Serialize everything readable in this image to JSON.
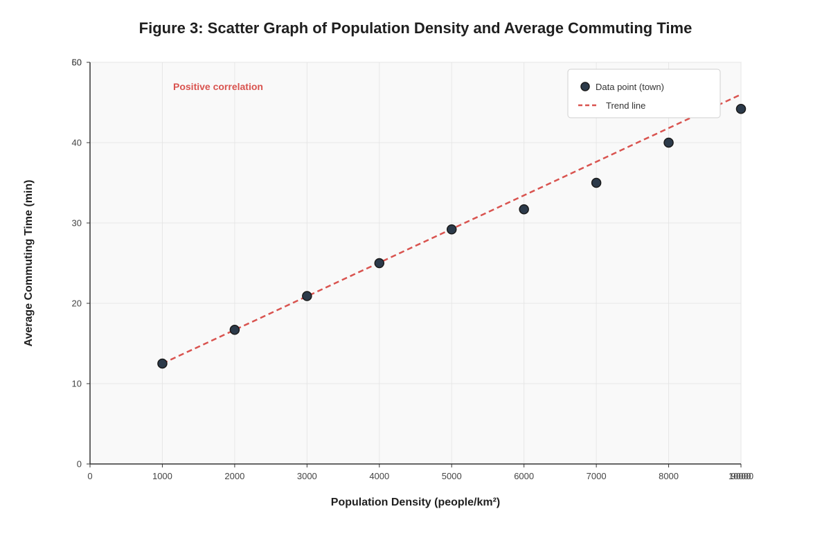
{
  "chart_data": {
    "type": "scatter",
    "title": "Figure 3: Scatter Graph of Population Density and Average Commuting Time",
    "xlabel": "Population Density (people/km²)",
    "ylabel": "Average Commuting Time (min)",
    "xlim": [
      0,
      9000
    ],
    "ylim": [
      0,
      50
    ],
    "x_ticks": [
      0,
      1000,
      2000,
      3000,
      4000,
      5000,
      6000,
      7000,
      8000,
      9000,
      10000
    ],
    "y_ticks": [
      0,
      10,
      20,
      30,
      40,
      50,
      60
    ],
    "grid": true,
    "legend_position": "top-right",
    "series": [
      {
        "name": "Data point (town)",
        "x": [
          1000,
          2000,
          3000,
          4000,
          5000,
          6000,
          7000,
          8000,
          9000
        ],
        "y": [
          12.5,
          16.7,
          20.9,
          25.0,
          29.2,
          31.7,
          35.0,
          40.0,
          44.2
        ]
      }
    ],
    "trend_line": {
      "name": "Trend line",
      "x": [
        1000,
        9000
      ],
      "y": [
        12.5,
        46.0
      ]
    },
    "annotations": [
      {
        "text": "Positive correlation"
      }
    ]
  },
  "colors": {
    "point_fill": "#2c3a4a",
    "point_stroke": "#1a1a1a",
    "trend": "#d9534f",
    "annotation": "#d9534f",
    "plot_bg": "#f9f9f9",
    "grid": "#e6e6e6"
  }
}
